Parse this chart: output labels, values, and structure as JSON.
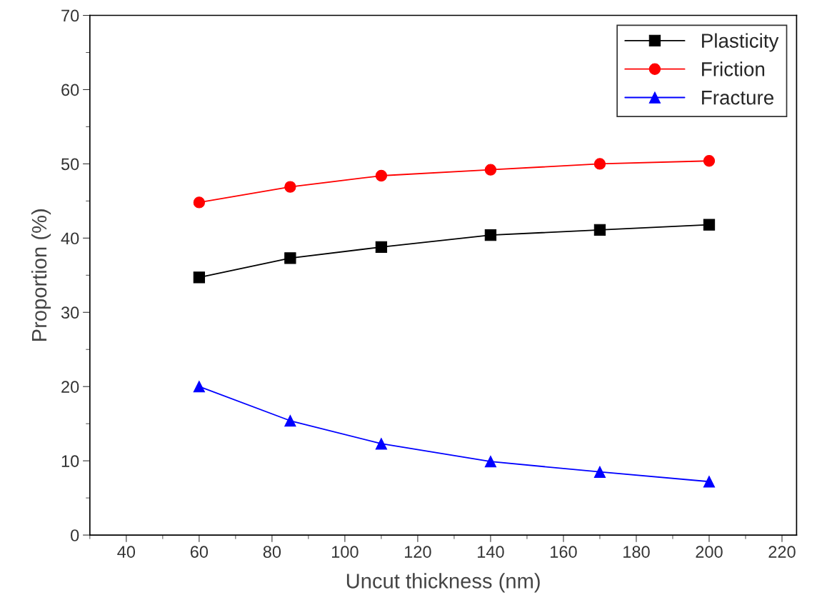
{
  "chart_data": {
    "type": "line",
    "xlabel": "Uncut thickness (nm)",
    "ylabel": "Proportion (%)",
    "x": [
      60,
      85,
      110,
      140,
      170,
      200
    ],
    "series": [
      {
        "name": "Plasticity",
        "color": "#000000",
        "marker": "square",
        "values": [
          34.7,
          37.3,
          38.8,
          40.4,
          41.1,
          41.8
        ]
      },
      {
        "name": "Friction",
        "color": "#ff0000",
        "marker": "circle",
        "values": [
          44.8,
          46.9,
          48.4,
          49.2,
          50.0,
          50.4
        ]
      },
      {
        "name": "Fracture",
        "color": "#0000ff",
        "marker": "triangle",
        "values": [
          20.0,
          15.4,
          12.3,
          9.9,
          8.5,
          7.2
        ]
      }
    ],
    "xlim": [
      30,
      224
    ],
    "xticks": [
      40,
      60,
      80,
      100,
      120,
      140,
      160,
      180,
      200,
      220
    ],
    "ylim": [
      0,
      70
    ],
    "yticks": [
      0,
      10,
      20,
      30,
      40,
      50,
      60,
      70
    ],
    "grid": false,
    "legend": "top right",
    "line_style": "solid"
  }
}
